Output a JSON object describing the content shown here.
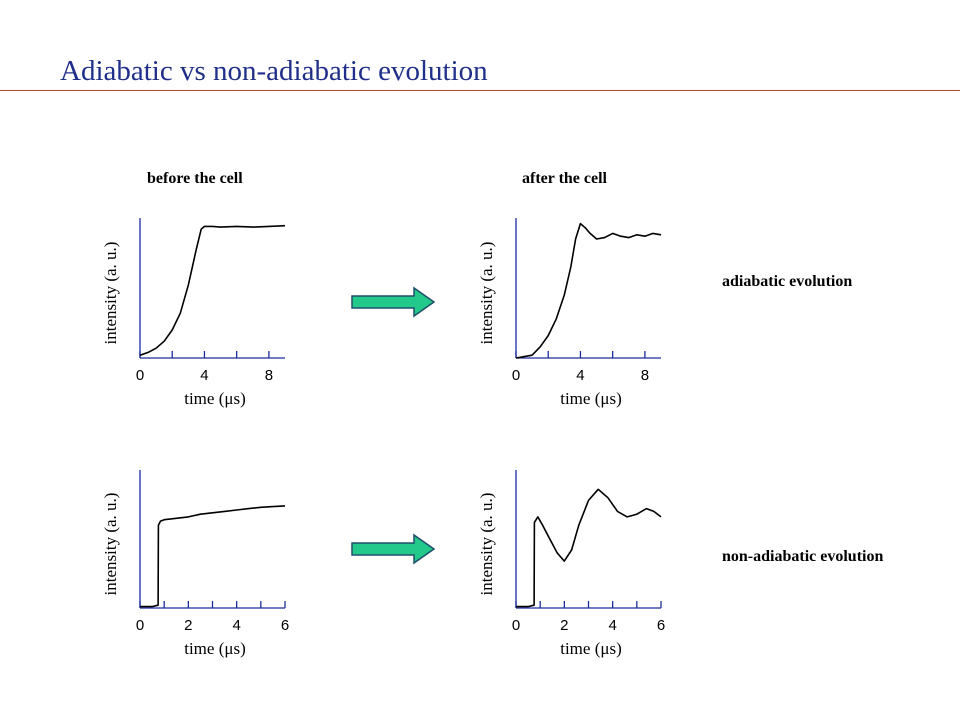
{
  "title": "Adiabatic vs non-adiabatic evolution",
  "column_headers": {
    "before": "before the cell",
    "after": "after the cell"
  },
  "row_labels": {
    "adiabatic": "adiabatic evolution",
    "non_adiabatic": "non-adiabatic evolution"
  },
  "colors": {
    "title": "#1f2f8a",
    "rule": "#b44a3c",
    "axis": "#1a2c9e",
    "trace": "#000000",
    "arrow_fill": "#22c98a",
    "arrow_stroke": "#1f4f6a"
  },
  "chart_data": [
    {
      "type": "line",
      "panel": "adiabatic-before",
      "title": "",
      "xlabel": "time (μs)",
      "ylabel": "intensity (a. u.)",
      "xlim": [
        0,
        9
      ],
      "ylim": [
        0,
        1
      ],
      "xticks": [
        0,
        2,
        4,
        6,
        8
      ],
      "xtick_labels": [
        "0",
        "4",
        "8"
      ],
      "xtick_label_values": [
        0,
        4,
        8
      ],
      "series": [
        {
          "x": [
            0,
            0.5,
            1,
            1.5,
            2,
            2.5,
            3,
            3.5,
            3.8,
            4.0,
            4.5,
            5,
            6,
            7,
            8,
            9
          ],
          "y": [
            0.02,
            0.04,
            0.07,
            0.12,
            0.2,
            0.32,
            0.52,
            0.78,
            0.92,
            0.94,
            0.94,
            0.935,
            0.94,
            0.935,
            0.94,
            0.945
          ]
        }
      ]
    },
    {
      "type": "line",
      "panel": "adiabatic-after",
      "title": "",
      "xlabel": "time (μs)",
      "ylabel": "intensity (a. u.)",
      "xlim": [
        0,
        9
      ],
      "ylim": [
        0,
        1
      ],
      "xticks": [
        0,
        2,
        4,
        6,
        8
      ],
      "xtick_labels": [
        "0",
        "4",
        "8"
      ],
      "xtick_label_values": [
        0,
        4,
        8
      ],
      "series": [
        {
          "x": [
            0,
            1,
            1.5,
            2,
            2.5,
            3,
            3.4,
            3.7,
            4.0,
            4.3,
            4.6,
            5,
            5.5,
            6,
            6.5,
            7,
            7.5,
            8,
            8.5,
            9
          ],
          "y": [
            0.0,
            0.02,
            0.08,
            0.16,
            0.28,
            0.45,
            0.65,
            0.85,
            0.96,
            0.93,
            0.89,
            0.85,
            0.86,
            0.89,
            0.87,
            0.86,
            0.88,
            0.87,
            0.89,
            0.88
          ]
        }
      ]
    },
    {
      "type": "line",
      "panel": "non-adiabatic-before",
      "title": "",
      "xlabel": "time (μs)",
      "ylabel": "intensity (a. u.)",
      "xlim": [
        0,
        6
      ],
      "ylim": [
        0,
        1
      ],
      "xticks": [
        0,
        1,
        2,
        3,
        4,
        5,
        6
      ],
      "xtick_labels": [
        "0",
        "2",
        "4",
        "6"
      ],
      "xtick_label_values": [
        0,
        2,
        4,
        6
      ],
      "series": [
        {
          "x": [
            0,
            0.5,
            0.75,
            0.76,
            0.85,
            1.0,
            1.5,
            2,
            2.5,
            3,
            3.5,
            4,
            4.5,
            5,
            5.5,
            6
          ],
          "y": [
            0.01,
            0.01,
            0.02,
            0.6,
            0.63,
            0.64,
            0.65,
            0.66,
            0.68,
            0.69,
            0.7,
            0.71,
            0.72,
            0.73,
            0.735,
            0.74
          ]
        }
      ]
    },
    {
      "type": "line",
      "panel": "non-adiabatic-after",
      "title": "",
      "xlabel": "time (μs)",
      "ylabel": "intensity (a. u.)",
      "xlim": [
        0,
        6
      ],
      "ylim": [
        0,
        1
      ],
      "xticks": [
        0,
        1,
        2,
        3,
        4,
        5,
        6
      ],
      "xtick_labels": [
        "0",
        "2",
        "4",
        "6"
      ],
      "xtick_label_values": [
        0,
        2,
        4,
        6
      ],
      "series": [
        {
          "x": [
            0,
            0.5,
            0.75,
            0.76,
            0.9,
            1.1,
            1.4,
            1.7,
            2.0,
            2.3,
            2.6,
            3.0,
            3.4,
            3.8,
            4.2,
            4.6,
            5.0,
            5.4,
            5.7,
            6.0
          ],
          "y": [
            0.01,
            0.01,
            0.02,
            0.62,
            0.66,
            0.6,
            0.5,
            0.4,
            0.34,
            0.42,
            0.6,
            0.78,
            0.86,
            0.8,
            0.7,
            0.66,
            0.68,
            0.72,
            0.7,
            0.66
          ]
        }
      ]
    }
  ]
}
